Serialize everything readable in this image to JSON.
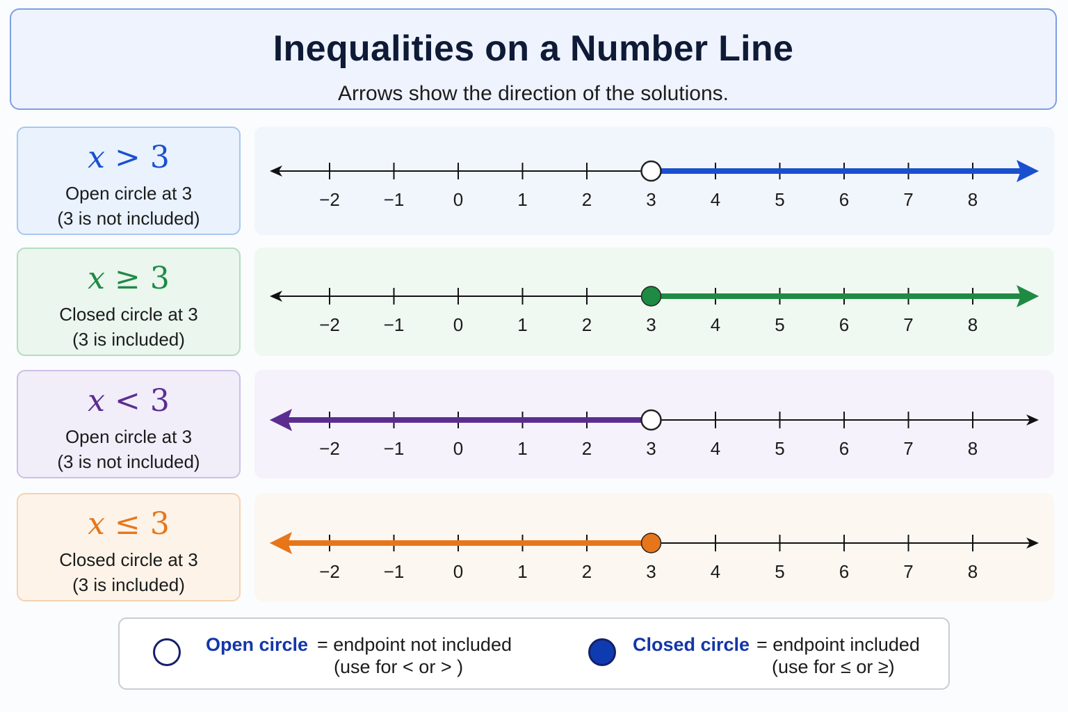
{
  "header": {
    "title": "Inequalities on a Number Line",
    "subtitle": "Arrows show the direction of the solutions."
  },
  "number_line": {
    "ticks": [
      -2,
      -1,
      0,
      1,
      2,
      3,
      4,
      5,
      6,
      7,
      8
    ],
    "tick_labels": [
      "−2",
      "−1",
      "0",
      "1",
      "2",
      "3",
      "4",
      "5",
      "6",
      "7",
      "8"
    ]
  },
  "rows": [
    {
      "variable": "x",
      "operator": ">",
      "value": "3",
      "desc_line1": "Open circle at 3",
      "desc_line2": "(3 is not included)",
      "endpoint": 3,
      "circle": "open",
      "direction": "right",
      "color": "#1a4fd0",
      "box_bg": "#e9f2fd",
      "box_border": "#a9c6ee",
      "panel_bg": "#f1f6fd"
    },
    {
      "variable": "x",
      "operator": "≥",
      "value": "3",
      "desc_line1": "Closed circle at 3",
      "desc_line2": "(3 is included)",
      "endpoint": 3,
      "circle": "closed",
      "direction": "right",
      "color": "#1f8a43",
      "box_bg": "#eaf6ee",
      "box_border": "#b4dcc0",
      "panel_bg": "#f0f8f2"
    },
    {
      "variable": "x",
      "operator": "<",
      "value": "3",
      "desc_line1": "Open circle at 3",
      "desc_line2": "(3 is not included)",
      "endpoint": 3,
      "circle": "open",
      "direction": "left",
      "color": "#5b2d91",
      "box_bg": "#f1edf9",
      "box_border": "#cdbfe6",
      "panel_bg": "#f5f2fb"
    },
    {
      "variable": "x",
      "operator": "≤",
      "value": "3",
      "desc_line1": "Closed circle at 3",
      "desc_line2": "(3 is included)",
      "endpoint": 3,
      "circle": "closed",
      "direction": "left",
      "color": "#e7761a",
      "box_bg": "#fdf3e9",
      "box_border": "#f5d2b0",
      "panel_bg": "#fdf7f1"
    }
  ],
  "legend": {
    "open_term": "Open circle",
    "open_eq": "= endpoint not included",
    "open_use": "(use for < or > )",
    "closed_term": "Closed circle",
    "closed_eq": "= endpoint included",
    "closed_use": "(use for ≤ or ≥)",
    "closed_fill": "#0f3bb0"
  }
}
